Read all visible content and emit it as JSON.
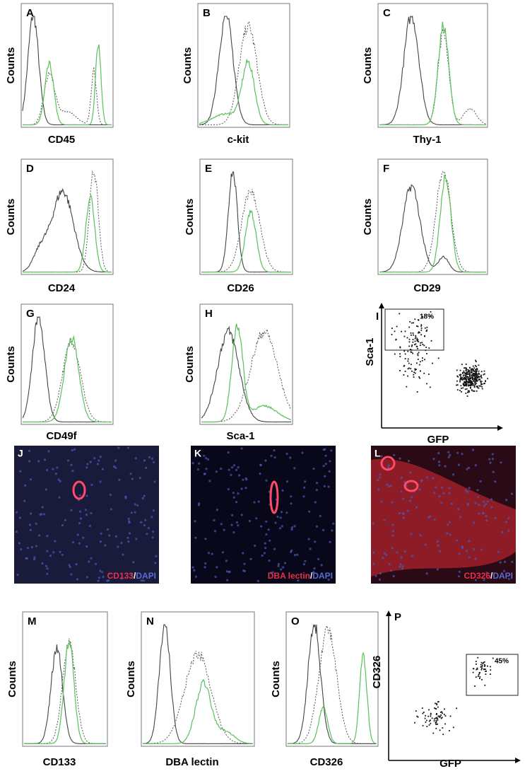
{
  "panels": [
    {
      "letter": "A",
      "ylabel": "Counts",
      "xlabel": "CD45"
    },
    {
      "letter": "B",
      "ylabel": "Counts",
      "xlabel": "c-kit"
    },
    {
      "letter": "C",
      "ylabel": "Counts",
      "xlabel": "Thy-1"
    },
    {
      "letter": "D",
      "ylabel": "Counts",
      "xlabel": "CD24"
    },
    {
      "letter": "E",
      "ylabel": "Counts",
      "xlabel": "CD26"
    },
    {
      "letter": "F",
      "ylabel": "Counts",
      "xlabel": "CD29"
    },
    {
      "letter": "G",
      "ylabel": "Counts",
      "xlabel": "CD49f"
    },
    {
      "letter": "H",
      "ylabel": "Counts",
      "xlabel": "Sca-1"
    },
    {
      "letter": "I",
      "ylabel": "Sca-1",
      "xlabel": "GFP",
      "gate": "18%"
    },
    {
      "letter": "M",
      "ylabel": "Counts",
      "xlabel": "CD133"
    },
    {
      "letter": "N",
      "ylabel": "Counts",
      "xlabel": "DBA lectin"
    },
    {
      "letter": "O",
      "ylabel": "Counts",
      "xlabel": "CD326"
    },
    {
      "letter": "P",
      "ylabel": "CD326",
      "xlabel": "GFP",
      "gate": "45%"
    }
  ],
  "images": [
    {
      "letter": "J",
      "caption": [
        "CD133",
        "/",
        "DAPI"
      ]
    },
    {
      "letter": "K",
      "caption": [
        "DBA lectin",
        "/",
        "DAPI"
      ]
    },
    {
      "letter": "L",
      "caption": [
        "CD326",
        "/",
        "DAPI"
      ]
    }
  ]
}
